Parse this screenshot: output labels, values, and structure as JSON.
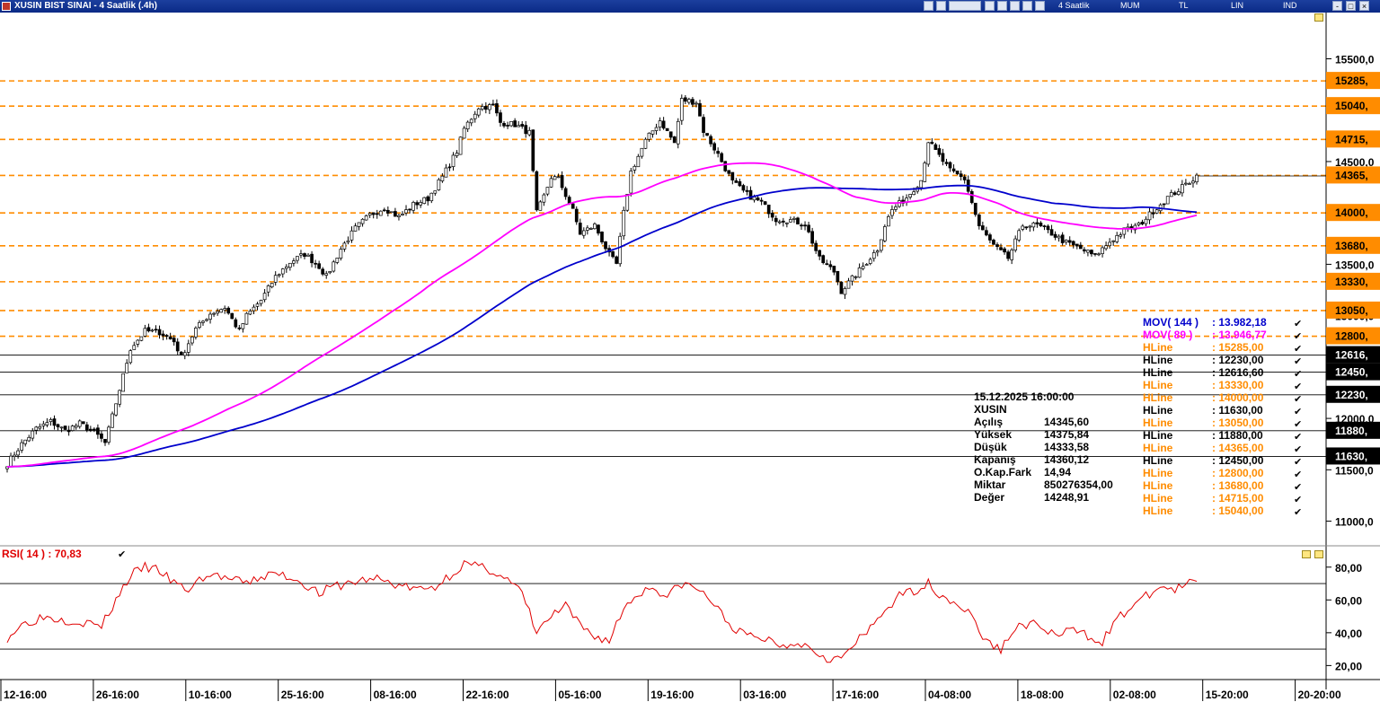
{
  "window": {
    "title": "XUSIN BIST SINAI - 4 Saatlik (.4h)",
    "period": "4 Saatlik",
    "tabs": [
      "MUM",
      "TL",
      "LIN",
      "IND"
    ],
    "controls": [
      "-",
      "□",
      "×"
    ]
  },
  "colors": {
    "titlebar": "#0a2a86",
    "hline_orange": "#ff8c00",
    "hline_black": "#000000",
    "mov144": "#0000cc",
    "mov89": "#ff00ff",
    "rsi": "#e00000",
    "hline_label_bg_orange": "#ff8c00",
    "hline_label_bg_black": "#000000"
  },
  "chart_data": {
    "type": "candlestick",
    "symbol": "XUSIN",
    "x_tick_labels": [
      "12-16:00",
      "26-16:00",
      "10-16:00",
      "25-16:00",
      "08-16:00",
      "22-16:00",
      "05-16:00",
      "19-16:00",
      "03-16:00",
      "17-16:00",
      "04-08:00",
      "18-08:00",
      "02-08:00",
      "15-20:00",
      "20-20:00"
    ],
    "y_axis": {
      "ticks": [
        "15500,0",
        "14500,0",
        "13500,0",
        "13000,0",
        "12000,0",
        "11500,0",
        "11000,0"
      ],
      "ylim": [
        10900,
        15950
      ]
    },
    "close_path": [
      [
        0,
        11560
      ],
      [
        4,
        11750
      ],
      [
        8,
        11900
      ],
      [
        12,
        11970
      ],
      [
        16,
        11880
      ],
      [
        20,
        11950
      ],
      [
        24,
        11870
      ],
      [
        27,
        11760
      ],
      [
        30,
        12150
      ],
      [
        34,
        12680
      ],
      [
        38,
        12850
      ],
      [
        42,
        12840
      ],
      [
        46,
        12750
      ],
      [
        48,
        12600
      ],
      [
        52,
        12870
      ],
      [
        56,
        13020
      ],
      [
        60,
        13080
      ],
      [
        64,
        12850
      ],
      [
        66,
        13000
      ],
      [
        70,
        13150
      ],
      [
        74,
        13380
      ],
      [
        78,
        13520
      ],
      [
        82,
        13600
      ],
      [
        86,
        13480
      ],
      [
        88,
        13380
      ],
      [
        92,
        13650
      ],
      [
        96,
        13850
      ],
      [
        100,
        13980
      ],
      [
        104,
        14050
      ],
      [
        108,
        13960
      ],
      [
        112,
        14080
      ],
      [
        116,
        14140
      ],
      [
        120,
        14350
      ],
      [
        124,
        14600
      ],
      [
        126,
        14820
      ],
      [
        130,
        15030
      ],
      [
        134,
        15040
      ],
      [
        136,
        14880
      ],
      [
        140,
        14860
      ],
      [
        144,
        14780
      ],
      [
        146,
        14000
      ],
      [
        148,
        14160
      ],
      [
        150,
        14350
      ],
      [
        152,
        14330
      ],
      [
        156,
        14020
      ],
      [
        158,
        13800
      ],
      [
        162,
        13880
      ],
      [
        166,
        13590
      ],
      [
        168,
        13500
      ],
      [
        170,
        14000
      ],
      [
        172,
        14400
      ],
      [
        176,
        14700
      ],
      [
        180,
        14900
      ],
      [
        184,
        14680
      ],
      [
        186,
        15100
      ],
      [
        190,
        15080
      ],
      [
        192,
        14800
      ],
      [
        196,
        14570
      ],
      [
        200,
        14300
      ],
      [
        204,
        14180
      ],
      [
        208,
        14100
      ],
      [
        212,
        13940
      ],
      [
        216,
        13930
      ],
      [
        220,
        13890
      ],
      [
        224,
        13550
      ],
      [
        228,
        13430
      ],
      [
        230,
        13240
      ],
      [
        232,
        13320
      ],
      [
        236,
        13480
      ],
      [
        240,
        13650
      ],
      [
        242,
        13880
      ],
      [
        244,
        14030
      ],
      [
        248,
        14150
      ],
      [
        252,
        14320
      ],
      [
        254,
        14700
      ],
      [
        256,
        14600
      ],
      [
        260,
        14410
      ],
      [
        264,
        14330
      ],
      [
        268,
        13870
      ],
      [
        272,
        13680
      ],
      [
        276,
        13560
      ],
      [
        280,
        13880
      ],
      [
        284,
        13880
      ],
      [
        288,
        13800
      ],
      [
        292,
        13710
      ],
      [
        296,
        13650
      ],
      [
        300,
        13580
      ],
      [
        304,
        13720
      ],
      [
        308,
        13830
      ],
      [
        312,
        13880
      ],
      [
        316,
        14020
      ],
      [
        320,
        14150
      ],
      [
        324,
        14250
      ],
      [
        328,
        14360
      ]
    ],
    "overlays": [
      {
        "name": "MOV( 144 )",
        "value": "13.982,18",
        "color": "#0000cc",
        "kind": "moving_average",
        "period": 144
      },
      {
        "name": "MOV( 89 )",
        "value": "13.946,77",
        "color": "#ff00ff",
        "kind": "moving_average",
        "period": 89
      }
    ],
    "hlines": [
      {
        "label": "HLine",
        "value": "15285,00",
        "price": 15285,
        "color": "orange"
      },
      {
        "label": "HLine",
        "value": "12230,00",
        "price": 12230,
        "color": "black"
      },
      {
        "label": "HLine",
        "value": "12616,60",
        "price": 12616.6,
        "color": "black"
      },
      {
        "label": "HLine",
        "value": "13330,00",
        "price": 13330,
        "color": "orange"
      },
      {
        "label": "HLine",
        "value": "14000,00",
        "price": 14000,
        "color": "orange"
      },
      {
        "label": "HLine",
        "value": "11630,00",
        "price": 11630,
        "color": "black"
      },
      {
        "label": "HLine",
        "value": "13050,00",
        "price": 13050,
        "color": "orange"
      },
      {
        "label": "HLine",
        "value": "11880,00",
        "price": 11880,
        "color": "black"
      },
      {
        "label": "HLine",
        "value": "14365,00",
        "price": 14365,
        "color": "orange"
      },
      {
        "label": "HLine",
        "value": "12450,00",
        "price": 12450,
        "color": "black"
      },
      {
        "label": "HLine",
        "value": "12800,00",
        "price": 12800,
        "color": "orange"
      },
      {
        "label": "HLine",
        "value": "13680,00",
        "price": 13680,
        "color": "orange"
      },
      {
        "label": "HLine",
        "value": "14715,00",
        "price": 14715,
        "color": "orange"
      },
      {
        "label": "HLine",
        "value": "15040,00",
        "price": 15040,
        "color": "orange"
      }
    ],
    "price_tags": [
      {
        "text": "15285,",
        "price": 15285,
        "color": "orange"
      },
      {
        "text": "15040,",
        "price": 15040,
        "color": "orange"
      },
      {
        "text": "14715,",
        "price": 14715,
        "color": "orange"
      },
      {
        "text": "14365,",
        "price": 14365,
        "color": "orange"
      },
      {
        "text": "14000,",
        "price": 14000,
        "color": "orange"
      },
      {
        "text": "13680,",
        "price": 13680,
        "color": "orange"
      },
      {
        "text": "13330,",
        "price": 13330,
        "color": "orange"
      },
      {
        "text": "13050,",
        "price": 13050,
        "color": "orange"
      },
      {
        "text": "12800,",
        "price": 12800,
        "color": "orange"
      },
      {
        "text": "12616,",
        "price": 12616.6,
        "color": "black"
      },
      {
        "text": "12450,",
        "price": 12450,
        "color": "black"
      },
      {
        "text": "12230,",
        "price": 12230,
        "color": "black"
      },
      {
        "text": "11880,",
        "price": 11880,
        "color": "black"
      },
      {
        "text": "11630,",
        "price": 11630,
        "color": "black"
      }
    ],
    "last_bar": {
      "datetime": "15.12.2025  16:00:00",
      "symbol": "XUSIN",
      "rows": [
        {
          "label": "Açılış",
          "value": "14345,60"
        },
        {
          "label": "Yüksek",
          "value": "14375,84"
        },
        {
          "label": "Düşük",
          "value": "14333,58"
        },
        {
          "label": "Kapanış",
          "value": "14360,12"
        },
        {
          "label": "O.Kap.Fark",
          "value": "14,94"
        },
        {
          "label": "Miktar",
          "value": "850276354,00"
        },
        {
          "label": "Değer",
          "value": "14248,91"
        }
      ]
    },
    "rsi": {
      "label": "RSI( 14 )",
      "value": ": 70,83",
      "y_ticks": [
        "80,00",
        "60,00",
        "40,00",
        "20,00"
      ],
      "ylim": [
        12,
        93
      ],
      "levels": [
        70,
        30
      ],
      "path": [
        [
          0,
          37
        ],
        [
          4,
          45
        ],
        [
          10,
          50
        ],
        [
          16,
          48
        ],
        [
          22,
          46
        ],
        [
          26,
          44
        ],
        [
          30,
          60
        ],
        [
          34,
          75
        ],
        [
          38,
          80
        ],
        [
          42,
          78
        ],
        [
          46,
          70
        ],
        [
          50,
          66
        ],
        [
          54,
          74
        ],
        [
          58,
          75
        ],
        [
          62,
          72
        ],
        [
          66,
          70
        ],
        [
          70,
          74
        ],
        [
          74,
          76
        ],
        [
          78,
          74
        ],
        [
          82,
          70
        ],
        [
          86,
          64
        ],
        [
          90,
          68
        ],
        [
          94,
          70
        ],
        [
          98,
          72
        ],
        [
          102,
          73
        ],
        [
          106,
          70
        ],
        [
          110,
          68
        ],
        [
          114,
          66
        ],
        [
          118,
          68
        ],
        [
          122,
          75
        ],
        [
          126,
          82
        ],
        [
          130,
          80
        ],
        [
          134,
          78
        ],
        [
          138,
          72
        ],
        [
          142,
          64
        ],
        [
          146,
          40
        ],
        [
          150,
          50
        ],
        [
          154,
          56
        ],
        [
          158,
          44
        ],
        [
          162,
          38
        ],
        [
          166,
          35
        ],
        [
          170,
          55
        ],
        [
          174,
          64
        ],
        [
          178,
          68
        ],
        [
          182,
          62
        ],
        [
          186,
          70
        ],
        [
          190,
          67
        ],
        [
          194,
          60
        ],
        [
          198,
          48
        ],
        [
          202,
          40
        ],
        [
          206,
          37
        ],
        [
          210,
          36
        ],
        [
          214,
          32
        ],
        [
          218,
          35
        ],
        [
          222,
          30
        ],
        [
          226,
          25
        ],
        [
          230,
          24
        ],
        [
          234,
          34
        ],
        [
          238,
          42
        ],
        [
          242,
          54
        ],
        [
          246,
          62
        ],
        [
          250,
          66
        ],
        [
          254,
          70
        ],
        [
          258,
          62
        ],
        [
          262,
          58
        ],
        [
          266,
          50
        ],
        [
          270,
          34
        ],
        [
          274,
          30
        ],
        [
          278,
          43
        ],
        [
          282,
          46
        ],
        [
          286,
          42
        ],
        [
          290,
          38
        ],
        [
          294,
          42
        ],
        [
          298,
          38
        ],
        [
          302,
          35
        ],
        [
          306,
          48
        ],
        [
          310,
          56
        ],
        [
          314,
          62
        ],
        [
          318,
          68
        ],
        [
          322,
          66
        ],
        [
          326,
          70
        ],
        [
          328,
          71
        ]
      ]
    }
  }
}
